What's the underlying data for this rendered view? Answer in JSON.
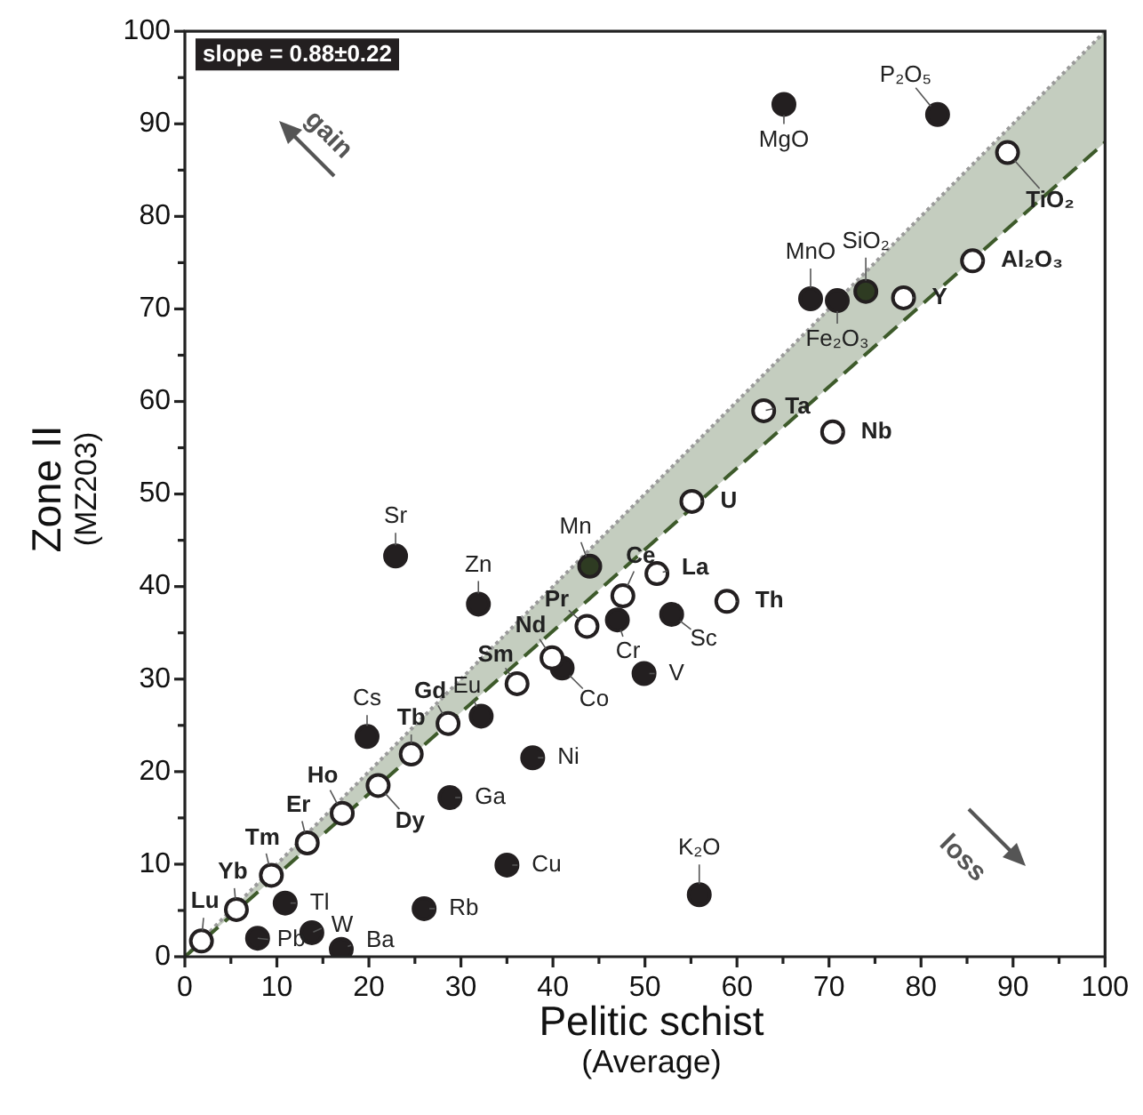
{
  "chart_data": {
    "type": "scatter",
    "xlabel": "Pelitic schist\n(Average)",
    "ylabel": "Zone II\n(MZ203)",
    "xlim": [
      0,
      100
    ],
    "ylim": [
      0,
      100
    ],
    "xticks": [
      0,
      {
        "value": 5,
        "label": null
      },
      10,
      {
        "value": 15,
        "label": null
      },
      20,
      {
        "value": 25,
        "label": null
      },
      30,
      {
        "value": 35,
        "label": null
      },
      40,
      {
        "value": 45,
        "label": null
      },
      50,
      {
        "value": 55,
        "label": null
      },
      60,
      {
        "value": 65,
        "label": null
      },
      70,
      {
        "value": 75,
        "label": null
      },
      80,
      {
        "value": 85,
        "label": null
      },
      90,
      {
        "value": 95,
        "label": null
      },
      100
    ],
    "yticks": [
      0,
      {
        "value": 5,
        "label": null
      },
      10,
      {
        "value": 15,
        "label": null
      },
      20,
      {
        "value": 25,
        "label": null
      },
      30,
      {
        "value": 35,
        "label": null
      },
      40,
      {
        "value": 45,
        "label": null
      },
      50,
      {
        "value": 55,
        "label": null
      },
      60,
      {
        "value": 65,
        "label": null
      },
      70,
      {
        "value": 75,
        "label": null
      },
      80,
      {
        "value": 85,
        "label": null
      },
      90,
      {
        "value": 95,
        "label": null
      },
      100
    ],
    "grid": false,
    "marker": "circle",
    "series": [
      {
        "type": "line",
        "x": [
          0,
          100
        ],
        "values": [
          0,
          88
        ],
        "lower": [
          0,
          88
        ],
        "upper": [
          0,
          100
        ],
        "color": "#3d5a2a",
        "line_style": "dashed",
        "marker": "none"
      },
      {
        "type": "line",
        "x": [
          0,
          100
        ],
        "values": [
          0,
          100
        ],
        "color": "#9a9a9a",
        "line_style": "dotted",
        "marker": "none"
      },
      {
        "color": "#231f20",
        "x": [
          65.1,
          81.8,
          68.0,
          70.9,
          55.9,
          22.9,
          31.9,
          47.0,
          41.0,
          32.2,
          19.8,
          37.8,
          28.8,
          35.0,
          10.9,
          26.0,
          7.9,
          13.8,
          17.0,
          52.9,
          49.9
        ],
        "values": [
          92.1,
          91.0,
          71.1,
          70.9,
          6.7,
          43.3,
          38.1,
          36.4,
          31.2,
          26.0,
          23.8,
          21.5,
          17.2,
          9.9,
          5.8,
          5.2,
          2.0,
          2.6,
          0.8,
          37.0,
          30.6
        ]
      },
      {
        "color": "#2e3b22",
        "x": [
          74.0,
          44.0
        ],
        "values": [
          71.9,
          42.2
        ]
      },
      {
        "color": "#ffffff",
        "x": [
          89.4,
          85.6,
          78.1,
          62.9,
          70.4,
          55.1,
          51.3,
          58.9,
          47.6,
          43.7,
          39.9,
          36.1,
          28.6,
          24.6,
          21.0,
          17.1,
          13.3,
          9.4,
          5.6,
          1.8
        ],
        "values": [
          86.9,
          75.2,
          71.2,
          59.0,
          56.7,
          49.2,
          41.4,
          38.4,
          39.0,
          35.7,
          32.3,
          29.5,
          25.2,
          21.9,
          18.5,
          15.5,
          12.3,
          8.8,
          5.1,
          1.7
        ]
      }
    ],
    "annotations": [
      "slope = 0.88±0.22",
      "gain",
      "loss",
      {
        "text": "MgO",
        "x": 65.1,
        "y": 92.1
      },
      {
        "text": "P₂O₅",
        "x": 81.8,
        "y": 91.0
      },
      {
        "text": "MnO",
        "x": 68.0,
        "y": 71.1
      },
      {
        "text": "Fe₂O₃",
        "x": 70.9,
        "y": 70.9
      },
      {
        "text": "K₂O",
        "x": 55.9,
        "y": 6.7
      },
      {
        "text": "Sr",
        "x": 22.9,
        "y": 43.3
      },
      {
        "text": "Zn",
        "x": 31.9,
        "y": 38.1
      },
      {
        "text": "Cr",
        "x": 47.0,
        "y": 36.4
      },
      {
        "text": "Co",
        "x": 41.0,
        "y": 31.2
      },
      {
        "text": "Eu",
        "x": 32.2,
        "y": 26.0
      },
      {
        "text": "Cs",
        "x": 19.8,
        "y": 23.8
      },
      {
        "text": "Ni",
        "x": 37.8,
        "y": 21.5
      },
      {
        "text": "Ga",
        "x": 28.8,
        "y": 17.2
      },
      {
        "text": "Cu",
        "x": 35.0,
        "y": 9.9
      },
      {
        "text": "Tl",
        "x": 10.9,
        "y": 5.8
      },
      {
        "text": "Rb",
        "x": 26.0,
        "y": 5.2
      },
      {
        "text": "Pb",
        "x": 7.9,
        "y": 2.0
      },
      {
        "text": "W",
        "x": 13.8,
        "y": 2.6
      },
      {
        "text": "Ba",
        "x": 17.0,
        "y": 0.8
      },
      {
        "text": "Sc",
        "x": 52.9,
        "y": 37.0
      },
      {
        "text": "V",
        "x": 49.9,
        "y": 30.6
      },
      {
        "text": "SiO₂",
        "x": 74.0,
        "y": 71.9
      },
      {
        "text": "Mn",
        "x": 44.0,
        "y": 42.2
      },
      {
        "text": "TiO₂",
        "x": 89.4,
        "y": 86.9
      },
      {
        "text": "Al₂O₃",
        "x": 85.6,
        "y": 75.2
      },
      {
        "text": "Y",
        "x": 78.1,
        "y": 71.2
      },
      {
        "text": "Ta",
        "x": 62.9,
        "y": 59.0
      },
      {
        "text": "Nb",
        "x": 70.4,
        "y": 56.7
      },
      {
        "text": "U",
        "x": 55.1,
        "y": 49.2
      },
      {
        "text": "La",
        "x": 51.3,
        "y": 41.4
      },
      {
        "text": "Th",
        "x": 58.9,
        "y": 38.4
      },
      {
        "text": "Ce",
        "x": 47.6,
        "y": 39.0
      },
      {
        "text": "Pr",
        "x": 43.7,
        "y": 35.7
      },
      {
        "text": "Nd",
        "x": 39.9,
        "y": 32.3
      },
      {
        "text": "Sm",
        "x": 36.1,
        "y": 29.5
      },
      {
        "text": "Gd",
        "x": 28.6,
        "y": 25.2
      },
      {
        "text": "Tb",
        "x": 24.6,
        "y": 21.9
      },
      {
        "text": "Dy",
        "x": 21.0,
        "y": 18.5
      },
      {
        "text": "Ho",
        "x": 17.1,
        "y": 15.5
      },
      {
        "text": "Er",
        "x": 13.3,
        "y": 12.3
      },
      {
        "text": "Tm",
        "x": 9.4,
        "y": 8.8
      },
      {
        "text": "Yb",
        "x": 5.6,
        "y": 5.1
      },
      {
        "text": "Lu",
        "x": 1.8,
        "y": 1.7
      }
    ]
  }
}
